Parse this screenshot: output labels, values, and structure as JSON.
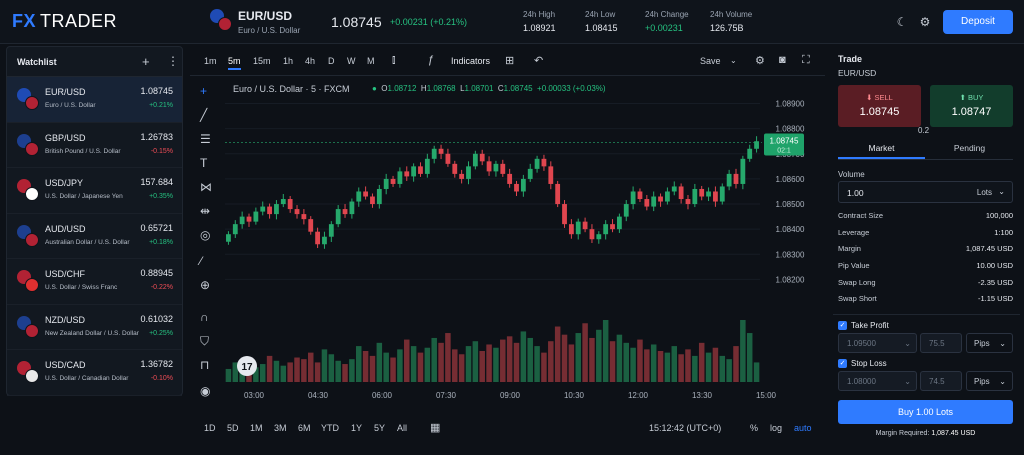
{
  "header": {
    "logo_fx": "FX",
    "logo_trader": "TRADER",
    "symbol": "EUR/USD",
    "symbol_desc": "Euro / U.S. Dollar",
    "price": "1.08745",
    "change": "+0.00231 (+0.21%)",
    "stats": [
      {
        "label": "24h High",
        "value": "1.08921"
      },
      {
        "label": "24h Low",
        "value": "1.08415"
      },
      {
        "label": "24h Change",
        "value": "+0.00231"
      },
      {
        "label": "24h Volume",
        "value": "126.75B"
      }
    ],
    "deposit": "Deposit",
    "icons": [
      "moon-icon",
      "gear-icon"
    ]
  },
  "watchlist": {
    "title": "Watchlist",
    "add": "+",
    "more": "⋮",
    "items": [
      {
        "symbol": "EUR/USD",
        "desc": "Euro / U.S. Dollar",
        "price": "1.08745",
        "change": "+0.21%",
        "dir": "up",
        "c1": "#1f4bb5",
        "c2": "#b22234"
      },
      {
        "symbol": "GBP/USD",
        "desc": "British Pound / U.S. Dollar",
        "price": "1.26783",
        "change": "-0.15%",
        "dir": "dn",
        "c1": "#1d3f8f",
        "c2": "#b22234"
      },
      {
        "symbol": "USD/JPY",
        "desc": "U.S. Dollar / Japanese Yen",
        "price": "157.684",
        "change": "+0.35%",
        "dir": "up",
        "c1": "#b22234",
        "c2": "#ffffff"
      },
      {
        "symbol": "AUD/USD",
        "desc": "Australian Dollar / U.S. Dollar",
        "price": "0.65721",
        "change": "+0.18%",
        "dir": "up",
        "c1": "#1d3f8f",
        "c2": "#b22234"
      },
      {
        "symbol": "USD/CHF",
        "desc": "U.S. Dollar / Swiss Franc",
        "price": "0.88945",
        "change": "-0.22%",
        "dir": "dn",
        "c1": "#b22234",
        "c2": "#e03030"
      },
      {
        "symbol": "NZD/USD",
        "desc": "New Zealand Dollar / U.S. Dollar",
        "price": "0.61032",
        "change": "+0.25%",
        "dir": "up",
        "c1": "#1d3f8f",
        "c2": "#b22234"
      },
      {
        "symbol": "USD/CAD",
        "desc": "U.S. Dollar / Canadian Dollar",
        "price": "1.36782",
        "change": "-0.10%",
        "dir": "dn",
        "c1": "#b22234",
        "c2": "#e8e8e8"
      }
    ]
  },
  "toolbar": {
    "timeframes": [
      "1m",
      "5m",
      "15m",
      "1h",
      "4h",
      "D",
      "W",
      "M"
    ],
    "active_timeframe": "5m",
    "indicators": "Indicators",
    "save": "Save"
  },
  "chart_title": "Euro / U.S. Dollar · 5 · FXCM",
  "ohlc": {
    "o": "1.08712",
    "h": "1.08768",
    "l": "1.08701",
    "c": "1.08745",
    "chg": "+0.00033 (+0.03%)"
  },
  "chart_data": {
    "type": "candlestick",
    "y_ticks": [
      "1.08900",
      "1.08800",
      "1.08700",
      "1.08600",
      "1.08500",
      "1.08400",
      "1.08300",
      "1.08200"
    ],
    "x_ticks": [
      "03:00",
      "04:30",
      "06:00",
      "07:30",
      "09:00",
      "10:30",
      "12:00",
      "13:30",
      "15:00"
    ],
    "ylim": [
      1.0815,
      1.0893
    ],
    "last_price": "1.08745",
    "last_label_sub": "02:1",
    "closes": [
      1.0838,
      1.0842,
      1.0845,
      1.0843,
      1.0847,
      1.0849,
      1.0846,
      1.085,
      1.0852,
      1.0848,
      1.0846,
      1.0844,
      1.0839,
      1.0834,
      1.0837,
      1.0842,
      1.0848,
      1.0846,
      1.0851,
      1.0855,
      1.0853,
      1.085,
      1.0856,
      1.086,
      1.0858,
      1.0863,
      1.0861,
      1.0865,
      1.0862,
      1.0868,
      1.0872,
      1.087,
      1.0866,
      1.0862,
      1.086,
      1.0865,
      1.087,
      1.0867,
      1.0863,
      1.0866,
      1.0862,
      1.0858,
      1.0855,
      1.086,
      1.0864,
      1.0868,
      1.0865,
      1.0858,
      1.085,
      1.0842,
      1.0838,
      1.0843,
      1.084,
      1.0836,
      1.0838,
      1.0842,
      1.084,
      1.0845,
      1.085,
      1.0855,
      1.0852,
      1.0849,
      1.0853,
      1.0851,
      1.0855,
      1.0857,
      1.0852,
      1.085,
      1.0856,
      1.0853,
      1.0855,
      1.0851,
      1.0857,
      1.0862,
      1.0858,
      1.0868,
      1.0872,
      1.0875
    ],
    "volumes": [
      8,
      12,
      10,
      14,
      9,
      11,
      16,
      13,
      10,
      12,
      15,
      14,
      18,
      12,
      20,
      17,
      13,
      11,
      14,
      22,
      19,
      16,
      24,
      18,
      15,
      20,
      26,
      22,
      18,
      21,
      27,
      24,
      30,
      20,
      17,
      22,
      25,
      19,
      23,
      21,
      26,
      28,
      24,
      31,
      27,
      22,
      18,
      25,
      34,
      29,
      23,
      30,
      36,
      27,
      32,
      38,
      25,
      29,
      24,
      21,
      26,
      20,
      23,
      19,
      18,
      22,
      17,
      20,
      16,
      24,
      18,
      21,
      16,
      14,
      22,
      38,
      30,
      12
    ]
  },
  "bottombar": {
    "ranges": [
      "1D",
      "5D",
      "1M",
      "3M",
      "6M",
      "YTD",
      "1Y",
      "5Y",
      "All"
    ],
    "time": "15:12:42 (UTC+0)",
    "pct": "%",
    "log": "log",
    "auto": "auto"
  },
  "trade": {
    "title": "Trade",
    "symbol": "EUR/USD",
    "sell_label": "SELL",
    "sell_price": "1.08745",
    "buy_label": "BUY",
    "buy_price": "1.08747",
    "spread": "0.2",
    "tab_market": "Market",
    "tab_pending": "Pending",
    "volume_label": "Volume",
    "volume_value": "1.00",
    "volume_unit": "Lots",
    "details": [
      {
        "k": "Contract Size",
        "v": "100,000"
      },
      {
        "k": "Leverage",
        "v": "1:100"
      },
      {
        "k": "Margin",
        "v": "1,087.45 USD"
      },
      {
        "k": "Pip Value",
        "v": "10.00 USD"
      },
      {
        "k": "Swap Long",
        "v": "-2.35 USD"
      },
      {
        "k": "Swap Short",
        "v": "-1.15 USD"
      }
    ],
    "tp_label": "Take Profit",
    "tp_price": "1.09500",
    "tp_pips": "75.5",
    "sl_label": "Stop Loss",
    "sl_price": "1.08000",
    "sl_pips": "74.5",
    "pips": "Pips",
    "buy_button": "Buy 1.00 Lots",
    "margin_req_label": "Margin Required:",
    "margin_req_value": "1,087.45 USD"
  }
}
